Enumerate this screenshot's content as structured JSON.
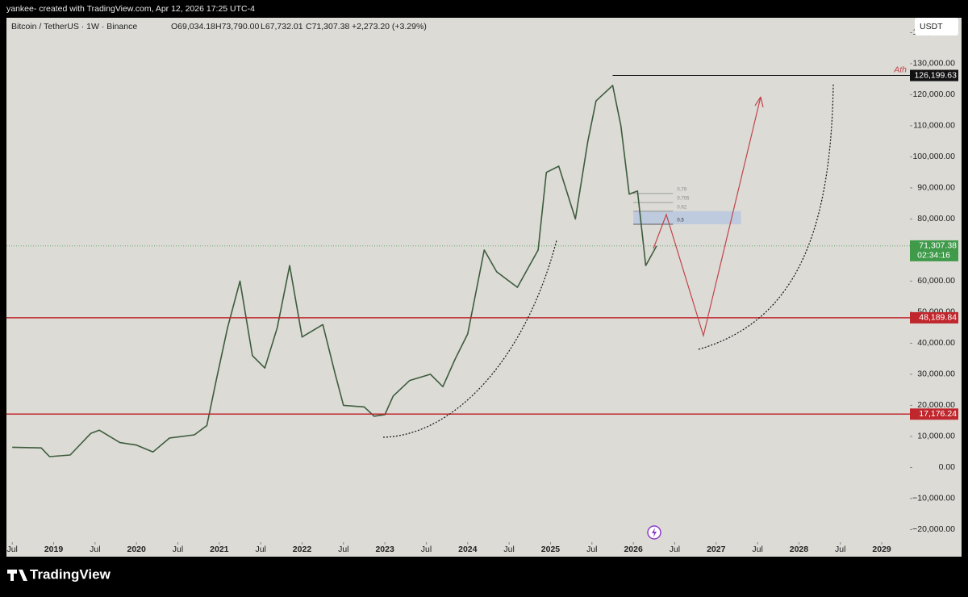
{
  "header": {
    "credit": "yankee- created with TradingView.com, Apr 12, 2026 17:25 UTC-4",
    "symbol": "Bitcoin / TetherUS · 1W · Binance",
    "open": "O69,034.18",
    "high": "H73,790.00",
    "low": "L67,732.01",
    "close": "C71,307.38",
    "change": "+2,273.20 (+3.29%)",
    "currency": "USDT",
    "countdown": "02:34:16"
  },
  "footer": {
    "brand": "TradingView"
  },
  "chart_data": {
    "type": "line",
    "color": "#3d5c3d",
    "x": [
      2018.5,
      2018.85,
      2018.95,
      2019.2,
      2019.45,
      2019.55,
      2019.8,
      2020.0,
      2020.2,
      2020.4,
      2020.7,
      2020.85,
      2020.97,
      2021.1,
      2021.25,
      2021.4,
      2021.55,
      2021.7,
      2021.85,
      2022.0,
      2022.25,
      2022.4,
      2022.5,
      2022.75,
      2022.87,
      2023.0,
      2023.1,
      2023.3,
      2023.55,
      2023.7,
      2023.85,
      2024.0,
      2024.2,
      2024.35,
      2024.6,
      2024.85,
      2024.95,
      2025.1,
      2025.3,
      2025.45,
      2025.55,
      2025.75,
      2025.85,
      2025.95,
      2026.05,
      2026.15,
      2026.28
    ],
    "values": [
      6500,
      6300,
      3500,
      4000,
      11000,
      12000,
      8000,
      7200,
      5000,
      9500,
      10500,
      13500,
      29000,
      45000,
      60000,
      36000,
      32000,
      45000,
      65000,
      42000,
      46000,
      30000,
      20000,
      19500,
      16500,
      17000,
      23000,
      28000,
      30000,
      26000,
      35000,
      43000,
      70000,
      63000,
      58000,
      70000,
      95000,
      97000,
      80000,
      105000,
      118000,
      123000,
      110000,
      88000,
      89000,
      65000,
      71307.38
    ],
    "xlim": [
      2018.43,
      2029.34
    ],
    "ylim": [
      -23000,
      144000
    ],
    "xticks": [
      {
        "value": 2018.5,
        "label": "Jul"
      },
      {
        "value": 2019,
        "label": "2019"
      },
      {
        "value": 2019.5,
        "label": "Jul"
      },
      {
        "value": 2020,
        "label": "2020"
      },
      {
        "value": 2020.5,
        "label": "Jul"
      },
      {
        "value": 2021,
        "label": "2021"
      },
      {
        "value": 2021.5,
        "label": "Jul"
      },
      {
        "value": 2022,
        "label": "2022"
      },
      {
        "value": 2022.5,
        "label": "Jul"
      },
      {
        "value": 2023,
        "label": "2023"
      },
      {
        "value": 2023.5,
        "label": "Jul"
      },
      {
        "value": 2024,
        "label": "2024"
      },
      {
        "value": 2024.5,
        "label": "Jul"
      },
      {
        "value": 2025,
        "label": "2025"
      },
      {
        "value": 2025.5,
        "label": "Jul"
      },
      {
        "value": 2026,
        "label": "2026"
      },
      {
        "value": 2026.5,
        "label": "Jul"
      },
      {
        "value": 2027,
        "label": "2027"
      },
      {
        "value": 2027.5,
        "label": "Jul"
      },
      {
        "value": 2028,
        "label": "2028"
      },
      {
        "value": 2028.5,
        "label": "Jul"
      },
      {
        "value": 2029,
        "label": "2029"
      }
    ],
    "yticks": [
      {
        "value": 140000,
        "label": "140,000.00"
      },
      {
        "value": 130000,
        "label": "130,000.00"
      },
      {
        "value": 120000,
        "label": "120,000.00"
      },
      {
        "value": 110000,
        "label": "110,000.00"
      },
      {
        "value": 100000,
        "label": "100,000.00"
      },
      {
        "value": 90000,
        "label": "90,000.00"
      },
      {
        "value": 80000,
        "label": "80,000.00"
      },
      {
        "value": 70000,
        "label": "70,000.00"
      },
      {
        "value": 60000,
        "label": "60,000.00"
      },
      {
        "value": 50000,
        "label": "50,000.00"
      },
      {
        "value": 40000,
        "label": "40,000.00"
      },
      {
        "value": 30000,
        "label": "30,000.00"
      },
      {
        "value": 20000,
        "label": "20,000.00"
      },
      {
        "value": 10000,
        "label": "10,000.00"
      },
      {
        "value": 0,
        "label": "0.00"
      },
      {
        "value": -10000,
        "label": "−10,000.00"
      },
      {
        "value": -20000,
        "label": "−20,000.00"
      }
    ],
    "levels": [
      {
        "value": 126199.63,
        "label": "126,199.63",
        "color": "#111111",
        "note": "Ath"
      },
      {
        "value": 48189.84,
        "label": "48,189.84",
        "color": "#c0272d"
      },
      {
        "value": 17176.24,
        "label": "17,176.24",
        "color": "#c0272d"
      }
    ],
    "last_price": {
      "value": 71307.38,
      "label": "71,307.38",
      "color": "#3f9a4a"
    },
    "fib": [
      {
        "value": 88200,
        "label": "0.79"
      },
      {
        "value": 85300,
        "label": "0.705"
      },
      {
        "value": 82500,
        "label": "0.62"
      },
      {
        "value": 78300,
        "label": "0.5"
      }
    ]
  }
}
